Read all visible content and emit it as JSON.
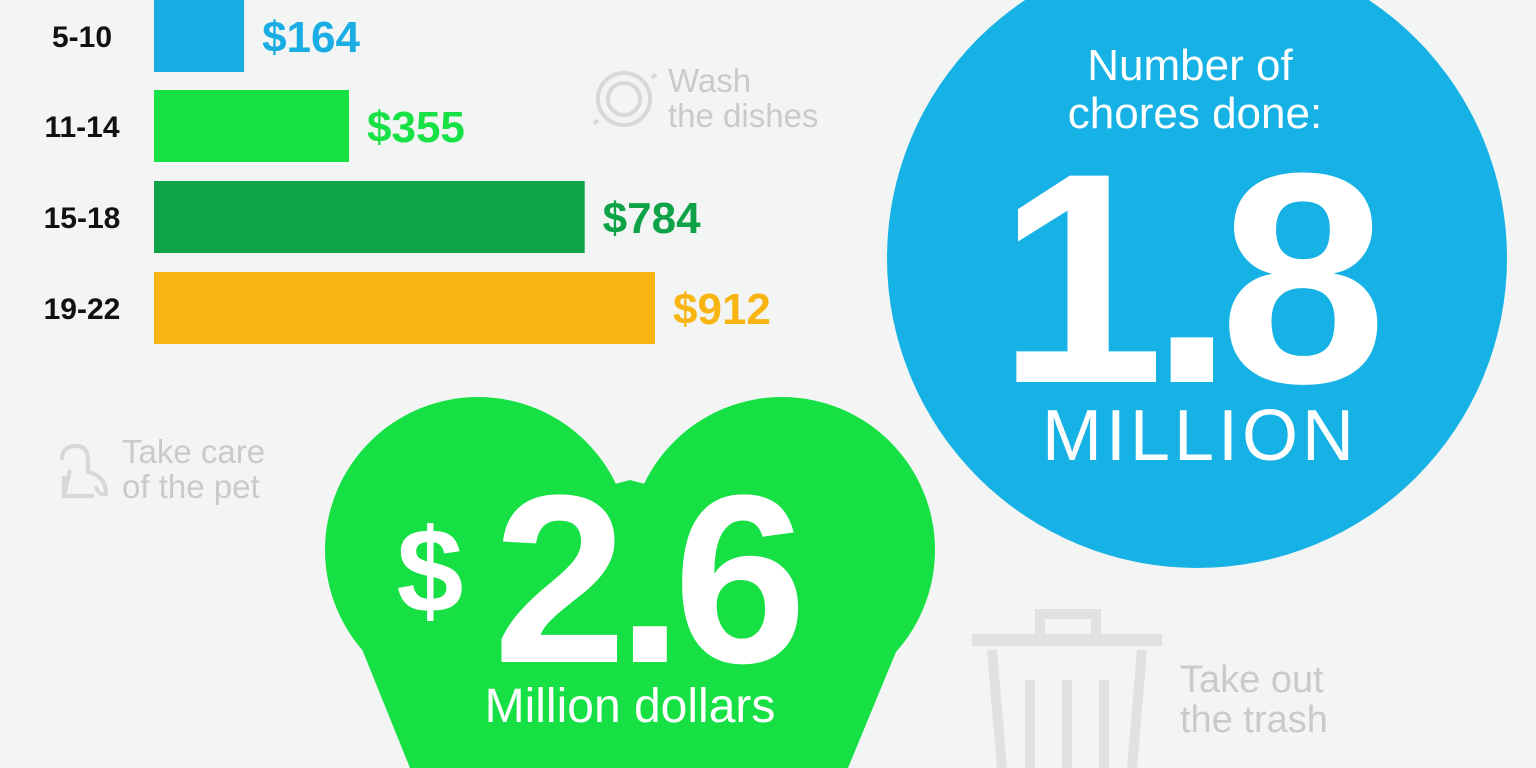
{
  "chart_data": {
    "type": "bar",
    "orientation": "horizontal",
    "categories": [
      "5-10",
      "11-14",
      "15-18",
      "19-22"
    ],
    "values": [
      164,
      355,
      784,
      912
    ],
    "value_labels": [
      "$164",
      "$355",
      "$784",
      "$912"
    ],
    "colors": [
      "#19ade3",
      "#18e146",
      "#0fa347",
      "#f8b512"
    ]
  },
  "chores": [
    {
      "lines": [
        "Wash",
        "the dishes"
      ]
    },
    {
      "lines": [
        "Take care",
        "of the pet"
      ]
    },
    {
      "lines": [
        "Take out",
        "the trash"
      ]
    }
  ],
  "chores_stat": {
    "caption": [
      "Number of",
      "chores done:"
    ],
    "value": "1.8",
    "unit": "MILLION"
  },
  "money_stat": {
    "currency": "$",
    "value": "2.6",
    "unit": "Million dollars"
  }
}
